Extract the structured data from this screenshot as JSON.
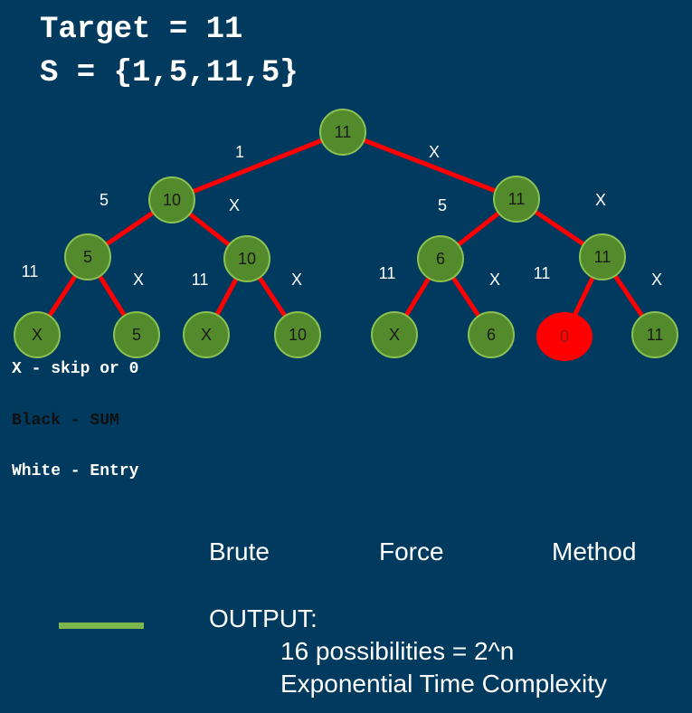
{
  "title": {
    "target": "Target = 11",
    "set": "S = {1,5,11,5}"
  },
  "tree": {
    "nodes": [
      {
        "id": "n0",
        "label": "11"
      },
      {
        "id": "n1",
        "label": "10"
      },
      {
        "id": "n2",
        "label": "11"
      },
      {
        "id": "n3",
        "label": "5"
      },
      {
        "id": "n4",
        "label": "10"
      },
      {
        "id": "n5",
        "label": "6"
      },
      {
        "id": "n6",
        "label": "11"
      },
      {
        "id": "n7",
        "label": "X"
      },
      {
        "id": "n8",
        "label": "5"
      },
      {
        "id": "n9",
        "label": "X"
      },
      {
        "id": "n10",
        "label": "10"
      },
      {
        "id": "n11",
        "label": "X"
      },
      {
        "id": "n12",
        "label": "6"
      },
      {
        "id": "n13",
        "label": "0",
        "highlight": true
      },
      {
        "id": "n14",
        "label": "11"
      }
    ],
    "edges": [
      {
        "from": "n0",
        "to": "n1",
        "label": "1"
      },
      {
        "from": "n0",
        "to": "n2",
        "label": "X"
      },
      {
        "from": "n1",
        "to": "n3",
        "label": "5"
      },
      {
        "from": "n1",
        "to": "n4",
        "label": "X"
      },
      {
        "from": "n2",
        "to": "n5",
        "label": "5"
      },
      {
        "from": "n2",
        "to": "n6",
        "label": "X"
      },
      {
        "from": "n3",
        "to": "n7",
        "label": "11"
      },
      {
        "from": "n3",
        "to": "n8",
        "label": "X"
      },
      {
        "from": "n4",
        "to": "n9",
        "label": "11"
      },
      {
        "from": "n4",
        "to": "n10",
        "label": "X"
      },
      {
        "from": "n5",
        "to": "n11",
        "label": "11"
      },
      {
        "from": "n5",
        "to": "n12",
        "label": "X"
      },
      {
        "from": "n6",
        "to": "n13",
        "label": "11"
      },
      {
        "from": "n6",
        "to": "n14",
        "label": "X"
      }
    ]
  },
  "legend": {
    "skip": "X - skip or 0",
    "black": "Black - SUM",
    "white": "White - Entry"
  },
  "heading": {
    "brute": "Brute",
    "force": "Force",
    "method": "Method"
  },
  "output": {
    "label": "OUTPUT:",
    "line1": "16 possibilities = 2^n",
    "line2": "Exponential Time Complexity"
  },
  "colors": {
    "background": "#013a5f",
    "node_fill": "#538a2c",
    "node_stroke": "#8cc152",
    "highlight_fill": "#ff0000",
    "edge": "#ff0000",
    "legend_bar": "#7db64a"
  }
}
